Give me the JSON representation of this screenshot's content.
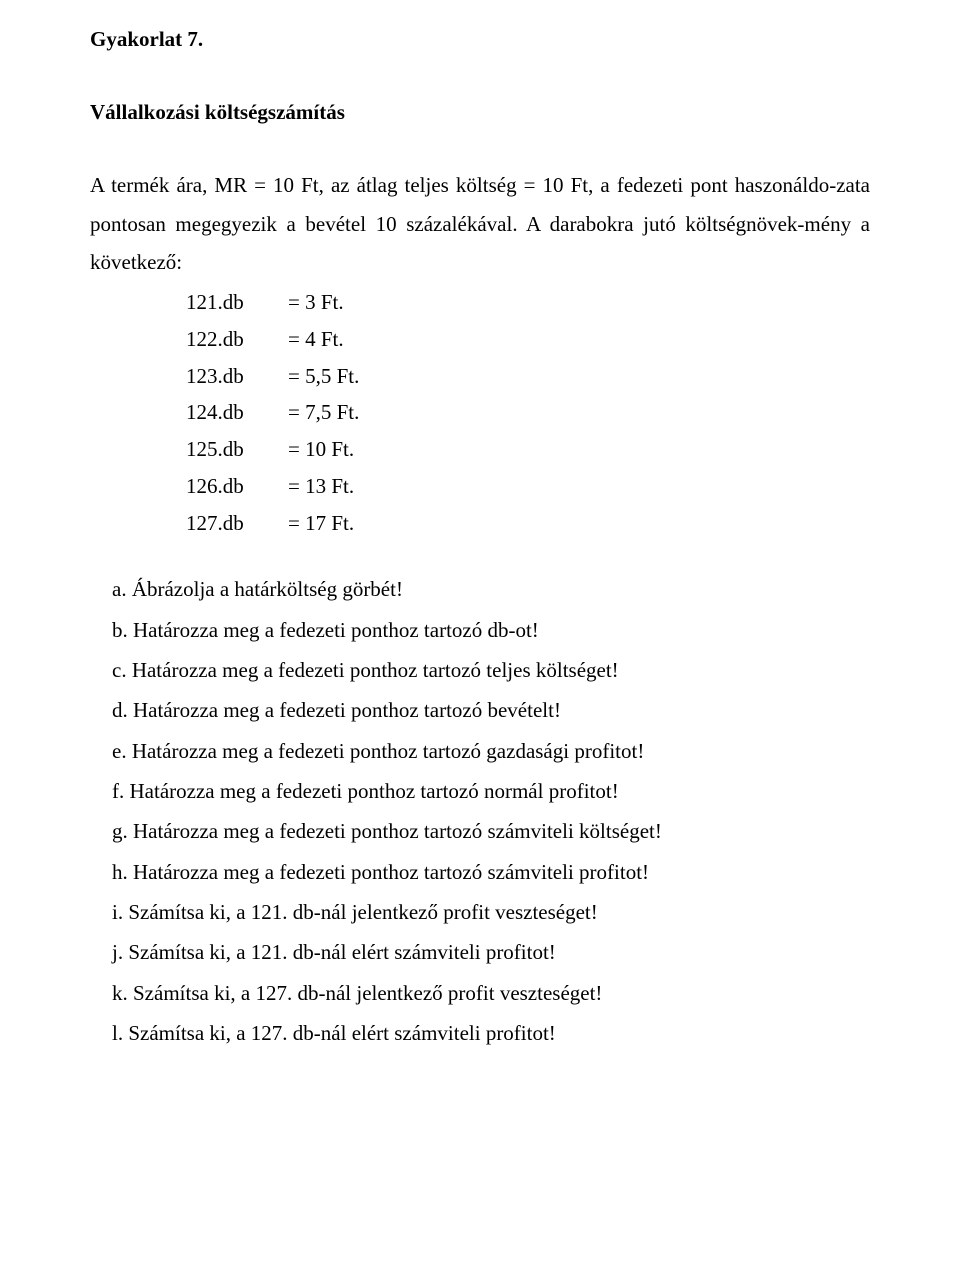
{
  "header": {
    "title": "Gyakorlat 7.",
    "subtitle": "Vállalkozási költségszámítás"
  },
  "intro": "A termék ára, MR   = 10 Ft, az átlag teljes költség = 10 Ft, a fedezeti pont haszonáldo-zata pontosan megegyezik a bevétel 10 százalékával. A darabokra jutó költségnövek-mény a következő:",
  "table": {
    "rows": [
      {
        "unit": "121.db",
        "value": "= 3 Ft."
      },
      {
        "unit": "122.db",
        "value": "= 4 Ft."
      },
      {
        "unit": "123.db",
        "value": "= 5,5 Ft."
      },
      {
        "unit": "124.db",
        "value": "= 7,5 Ft."
      },
      {
        "unit": "125.db",
        "value": "= 10 Ft."
      },
      {
        "unit": "126.db",
        "value": "= 13 Ft."
      },
      {
        "unit": "127.db",
        "value": "= 17 Ft."
      }
    ]
  },
  "questions": [
    "a. Ábrázolja a határköltség görbét!",
    "b. Határozza meg a fedezeti ponthoz tartozó db-ot!",
    "c. Határozza meg a fedezeti ponthoz tartozó teljes költséget!",
    "d. Határozza meg a fedezeti ponthoz tartozó bevételt!",
    "e. Határozza meg a fedezeti ponthoz tartozó gazdasági profitot!",
    "f. Határozza meg a fedezeti ponthoz tartozó normál profitot!",
    "g. Határozza meg a fedezeti ponthoz tartozó számviteli költséget!",
    "h. Határozza meg a fedezeti ponthoz tartozó számviteli profitot!",
    "i. Számítsa ki, a 121. db-nál jelentkező profit veszteséget!",
    "j. Számítsa ki, a 121. db-nál elért számviteli profitot!",
    "k. Számítsa ki, a 127. db-nál jelentkező profit veszteséget!",
    "l. Számítsa ki, a 127. db-nál elért számviteli profitot!"
  ]
}
